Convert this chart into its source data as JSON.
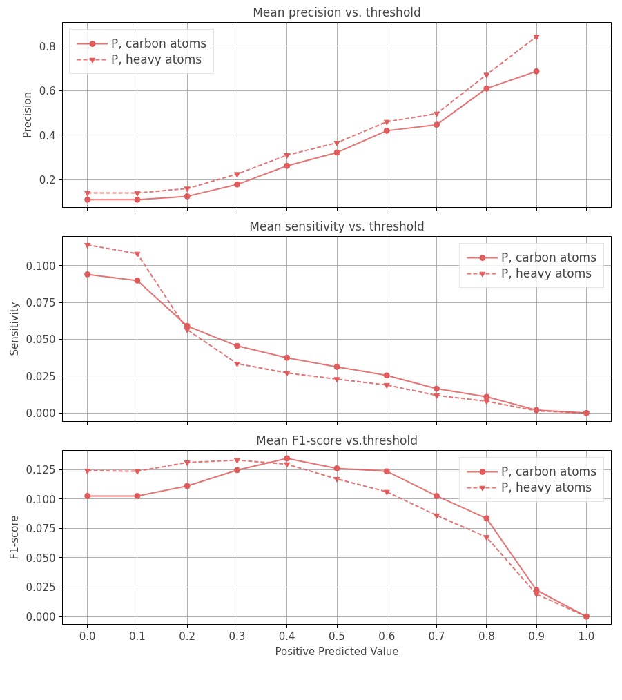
{
  "chart_data": [
    {
      "type": "line",
      "title": "Mean precision vs. threshold",
      "ylabel": "Precision",
      "x": [
        0.0,
        0.1,
        0.2,
        0.3,
        0.4,
        0.5,
        0.6,
        0.7,
        0.8,
        0.9
      ],
      "xlim": [
        -0.05,
        1.05
      ],
      "xticks": [
        0.0,
        0.1,
        0.2,
        0.3,
        0.4,
        0.5,
        0.6,
        0.7,
        0.8,
        0.9,
        1.0
      ],
      "ylim": [
        0.075,
        0.907
      ],
      "yticks": [
        0.2,
        0.4,
        0.6,
        0.8
      ],
      "grid": true,
      "legend": "top left",
      "tick_labels": "y",
      "series": [
        {
          "name": "P, carbon atoms",
          "color": "#e05c5c",
          "marker": "circle",
          "line_style": "solid",
          "values": [
            0.11,
            0.11,
            0.125,
            0.178,
            0.262,
            0.322,
            0.42,
            0.447,
            0.61,
            0.687
          ]
        },
        {
          "name": "P, heavy atoms",
          "color": "#e05c5c",
          "marker": "triangle",
          "line_style": "dashed",
          "values": [
            0.14,
            0.14,
            0.16,
            0.225,
            0.31,
            0.366,
            0.46,
            0.497,
            0.672,
            0.843
          ]
        }
      ]
    },
    {
      "type": "line",
      "title": "Mean sensitivity vs. threshold",
      "ylabel": "Sensitivity",
      "x": [
        0.0,
        0.1,
        0.2,
        0.3,
        0.4,
        0.5,
        0.6,
        0.7,
        0.8,
        0.9,
        1.0
      ],
      "xlim": [
        -0.05,
        1.05
      ],
      "xticks": [
        0.0,
        0.1,
        0.2,
        0.3,
        0.4,
        0.5,
        0.6,
        0.7,
        0.8,
        0.9,
        1.0
      ],
      "ylim": [
        -0.0057,
        0.1197
      ],
      "yticks": [
        {
          "value": 0.0,
          "label": "0.000"
        },
        {
          "value": 0.025,
          "label": "0.025"
        },
        {
          "value": 0.05,
          "label": "0.050"
        },
        {
          "value": 0.075,
          "label": "0.075"
        },
        {
          "value": 0.1,
          "label": "0.100"
        }
      ],
      "grid": true,
      "legend": "top right",
      "tick_labels": "y",
      "series": [
        {
          "name": "P, carbon atoms",
          "color": "#e05c5c",
          "marker": "circle",
          "line_style": "solid",
          "values": [
            0.094,
            0.0898,
            0.059,
            0.0455,
            0.0375,
            0.0313,
            0.0255,
            0.0165,
            0.011,
            0.002,
            0.0
          ]
        },
        {
          "name": "P, heavy atoms",
          "color": "#e05c5c",
          "marker": "triangle",
          "line_style": "dashed",
          "values": [
            0.114,
            0.108,
            0.0565,
            0.0335,
            0.0272,
            0.023,
            0.019,
            0.012,
            0.008,
            0.0015,
            0.0
          ]
        }
      ]
    },
    {
      "type": "line",
      "title": "Mean F1-score vs.threshold",
      "ylabel": "F1-score",
      "xlabel": "Positive Predicted Value",
      "x": [
        0.0,
        0.1,
        0.2,
        0.3,
        0.4,
        0.5,
        0.6,
        0.7,
        0.8,
        0.9,
        1.0
      ],
      "xlim": [
        -0.05,
        1.05
      ],
      "xticks": [
        {
          "value": 0.0,
          "label": "0.0"
        },
        0.1,
        0.2,
        0.3,
        0.4,
        0.5,
        0.6,
        0.7,
        0.8,
        0.9,
        {
          "value": 1.0,
          "label": "1.0"
        }
      ],
      "ylim": [
        -0.0067,
        0.1412
      ],
      "yticks": [
        {
          "value": 0.0,
          "label": "0.000"
        },
        {
          "value": 0.025,
          "label": "0.025"
        },
        {
          "value": 0.05,
          "label": "0.050"
        },
        {
          "value": 0.075,
          "label": "0.075"
        },
        {
          "value": 0.1,
          "label": "0.100"
        },
        {
          "value": 0.125,
          "label": "0.125"
        }
      ],
      "grid": true,
      "legend": "top right",
      "series": [
        {
          "name": "P, carbon atoms",
          "color": "#e05c5c",
          "marker": "circle",
          "line_style": "solid",
          "values": [
            0.1025,
            0.1025,
            0.111,
            0.1245,
            0.1345,
            0.126,
            0.1235,
            0.1025,
            0.0835,
            0.0225,
            0.0
          ]
        },
        {
          "name": "P, heavy atoms",
          "color": "#e05c5c",
          "marker": "triangle",
          "line_style": "dashed",
          "values": [
            0.124,
            0.1235,
            0.131,
            0.133,
            0.1295,
            0.117,
            0.106,
            0.086,
            0.0675,
            0.019,
            0.0
          ]
        }
      ]
    }
  ]
}
